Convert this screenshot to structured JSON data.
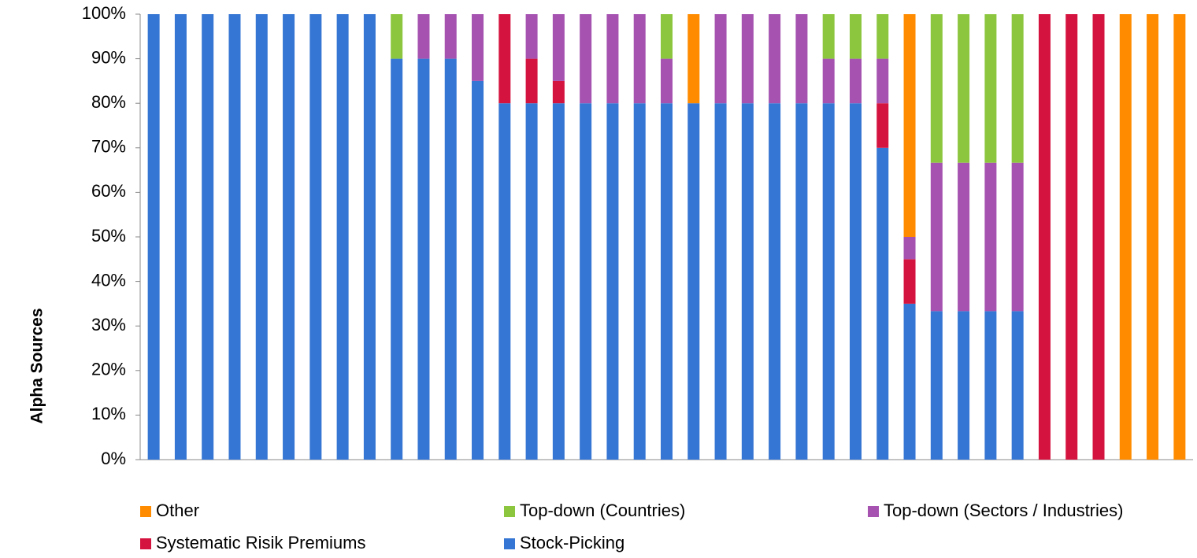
{
  "chart_data": {
    "type": "bar",
    "stacked": true,
    "y_label": "Alpha Sources",
    "categories": [
      null,
      null,
      null,
      null,
      null,
      null,
      null,
      null,
      null,
      null,
      null,
      null,
      null,
      null,
      null,
      null,
      null,
      null,
      null,
      null,
      null,
      null,
      null,
      null,
      null,
      null,
      null,
      null,
      null,
      null,
      null,
      null,
      null,
      null,
      null,
      null,
      null,
      null,
      null
    ],
    "series": [
      {
        "name": "Stock-Picking",
        "color": "#3575d3",
        "values": [
          100,
          100,
          100,
          100,
          100,
          100,
          100,
          100,
          100,
          90,
          90,
          90,
          85,
          80,
          80,
          80,
          80,
          80,
          80,
          80,
          80,
          80,
          80,
          80,
          80,
          80,
          80,
          70,
          35,
          33.33,
          33.33,
          33.33,
          33.33,
          0,
          0,
          0,
          0,
          0,
          0
        ]
      },
      {
        "name": "Systematic Risik Premiums",
        "color": "#d5133f",
        "values": [
          0,
          0,
          0,
          0,
          0,
          0,
          0,
          0,
          0,
          0,
          0,
          0,
          0,
          20,
          10,
          5,
          0,
          0,
          0,
          0,
          0,
          0,
          0,
          0,
          0,
          0,
          0,
          10,
          10,
          0,
          0,
          0,
          0,
          100,
          100,
          100,
          0,
          0,
          0
        ]
      },
      {
        "name": "Top-down (Sectors / Industries)",
        "color": "#a552b0",
        "values": [
          0,
          0,
          0,
          0,
          0,
          0,
          0,
          0,
          0,
          0,
          10,
          10,
          15,
          0,
          10,
          15,
          20,
          20,
          20,
          10,
          0,
          20,
          20,
          20,
          20,
          10,
          10,
          10,
          5,
          33.33,
          33.33,
          33.33,
          33.33,
          0,
          0,
          0,
          0,
          0,
          0
        ]
      },
      {
        "name": "Top-down (Countries)",
        "color": "#8cc63e",
        "values": [
          0,
          0,
          0,
          0,
          0,
          0,
          0,
          0,
          0,
          10,
          0,
          0,
          0,
          0,
          0,
          0,
          0,
          0,
          0,
          10,
          0,
          0,
          0,
          0,
          0,
          10,
          10,
          10,
          0,
          33.33,
          33.33,
          33.33,
          33.33,
          0,
          0,
          0,
          0,
          0,
          0
        ]
      },
      {
        "name": "Other",
        "color": "#ff8c00",
        "values": [
          0,
          0,
          0,
          0,
          0,
          0,
          0,
          0,
          0,
          0,
          0,
          0,
          0,
          0,
          0,
          0,
          0,
          0,
          0,
          0,
          20,
          0,
          0,
          0,
          0,
          0,
          0,
          0,
          50,
          0,
          0,
          0,
          0,
          0,
          0,
          0,
          100,
          100,
          100
        ]
      }
    ],
    "ylim": [
      0,
      100
    ],
    "yticks": [
      {
        "value": 0,
        "label": "0%"
      },
      {
        "value": 10,
        "label": "10%"
      },
      {
        "value": 20,
        "label": "20%"
      },
      {
        "value": 30,
        "label": "30%"
      },
      {
        "value": 40,
        "label": "40%"
      },
      {
        "value": 50,
        "label": "50%"
      },
      {
        "value": 60,
        "label": "60%"
      },
      {
        "value": 70,
        "label": "70%"
      },
      {
        "value": 80,
        "label": "80%"
      },
      {
        "value": 90,
        "label": "90%"
      },
      {
        "value": 100,
        "label": "100%"
      }
    ],
    "grid": false
  }
}
